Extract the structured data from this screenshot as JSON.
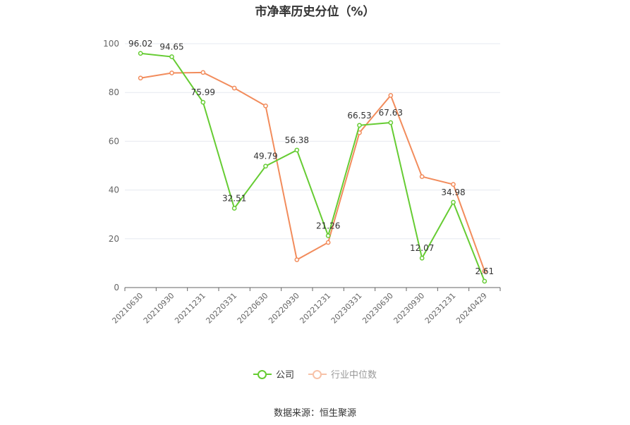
{
  "title": "市净率历史分位（%）",
  "source": "数据来源：恒生聚源",
  "legend": {
    "company": "公司",
    "industry": "行业中位数"
  },
  "colors": {
    "company": "#66cc33",
    "industry": "#f28c5c",
    "grid": "#e6e9f0",
    "axis": "#666666",
    "text": "#333333"
  },
  "chart_data": {
    "type": "line",
    "title": "市净率历史分位（%）",
    "categories": [
      "20210630",
      "20210930",
      "20211231",
      "20220331",
      "20220630",
      "20220930",
      "20221231",
      "20230331",
      "20230630",
      "20230930",
      "20231231",
      "20240429"
    ],
    "yticks": [
      0,
      20,
      40,
      60,
      80,
      100
    ],
    "ylim": [
      0,
      100
    ],
    "grid": true,
    "legend_position": "bottom",
    "series": [
      {
        "name": "公司",
        "values": [
          96.02,
          94.65,
          75.99,
          32.51,
          49.79,
          56.38,
          21.26,
          66.53,
          67.63,
          12.07,
          34.98,
          2.61
        ],
        "labels_shown": true
      },
      {
        "name": "行业中位数",
        "values": [
          85.9,
          88.0,
          88.2,
          81.8,
          74.5,
          11.4,
          18.5,
          63.5,
          78.8,
          45.5,
          42.3,
          6.8
        ],
        "labels_shown": false
      }
    ]
  }
}
